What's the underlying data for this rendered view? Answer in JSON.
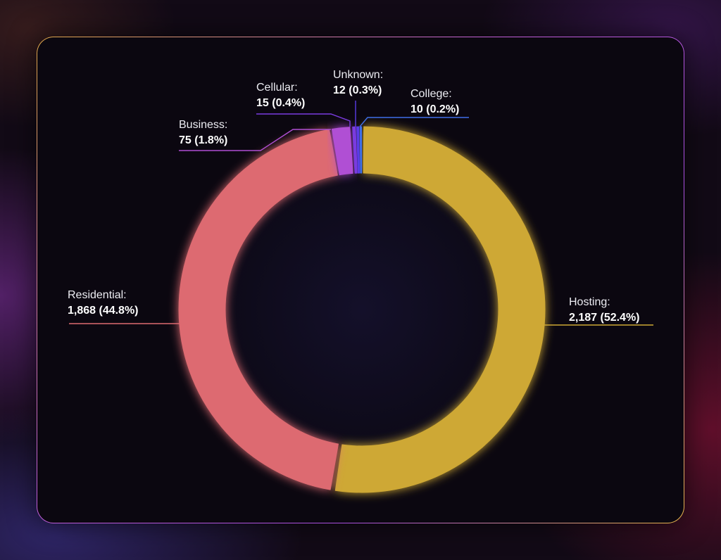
{
  "chart_data": {
    "type": "pie",
    "donut": true,
    "slices": [
      {
        "label": "Hosting:",
        "count_text": "2,187 (52.4%)",
        "value": 2187,
        "percent": 52.4,
        "color": "#cea834"
      },
      {
        "label": "Residential:",
        "count_text": "1,868 (44.8%)",
        "value": 1868,
        "percent": 44.8,
        "color": "#dd6a71"
      },
      {
        "label": "Business:",
        "count_text": "75 (1.8%)",
        "value": 75,
        "percent": 1.8,
        "color": "#b04fd4"
      },
      {
        "label": "Cellular:",
        "count_text": "15 (0.4%)",
        "value": 15,
        "percent": 0.4,
        "color": "#7a3be0"
      },
      {
        "label": "Unknown:",
        "count_text": "12 (0.3%)",
        "value": 12,
        "percent": 0.3,
        "color": "#5b3ce8"
      },
      {
        "label": "College:",
        "count_text": "10 (0.2%)",
        "value": 10,
        "percent": 0.2,
        "color": "#3f6fe8"
      }
    ]
  }
}
